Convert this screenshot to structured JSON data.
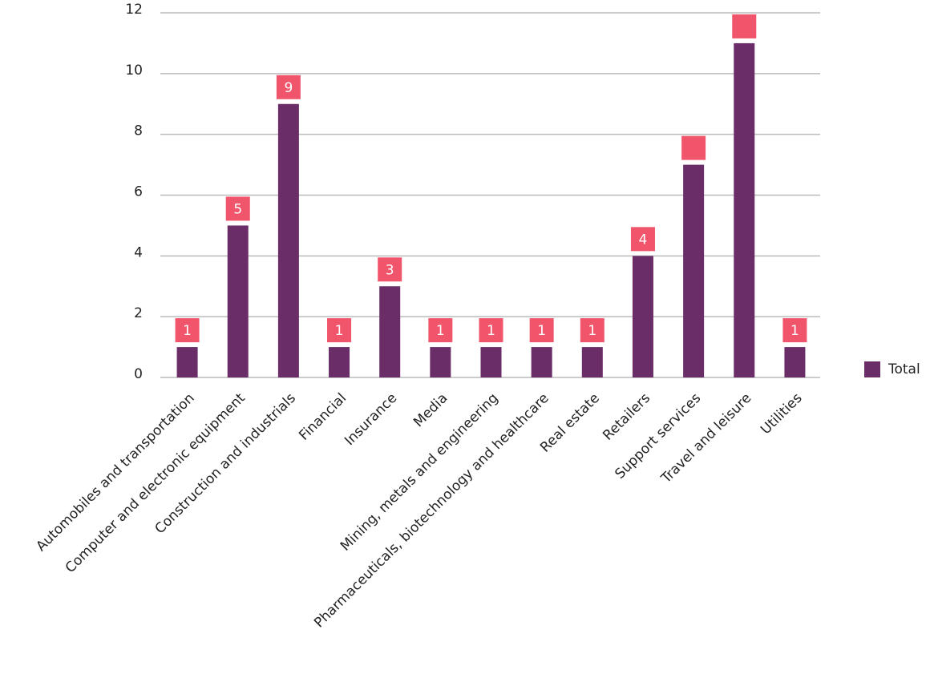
{
  "chart_data": {
    "type": "bar",
    "categories": [
      "Automobiles and transportation",
      "Computer and electronic equipment",
      "Construction and industrials",
      "Financial",
      "Insurance",
      "Media",
      "Mining, metals and engineering",
      "Pharmaceuticals, biotechnology and healthcare",
      "Real estate",
      "Retailers",
      "Support services",
      "Travel and leisure",
      "Utilities"
    ],
    "series": [
      {
        "name": "Total",
        "color": "#6b2d68",
        "label_color": "#f0556b",
        "values": [
          1,
          5,
          9,
          1,
          3,
          1,
          1,
          1,
          1,
          4,
          7,
          11,
          1
        ],
        "value_labels": [
          "1",
          "5",
          "9",
          "1",
          "3",
          "1",
          "1",
          "1",
          "1",
          "4",
          null,
          null,
          "1"
        ]
      }
    ],
    "ylim": [
      0,
      12
    ],
    "yticks": [
      0,
      2,
      4,
      6,
      8,
      10,
      12
    ],
    "grid": true,
    "legend": "right"
  }
}
